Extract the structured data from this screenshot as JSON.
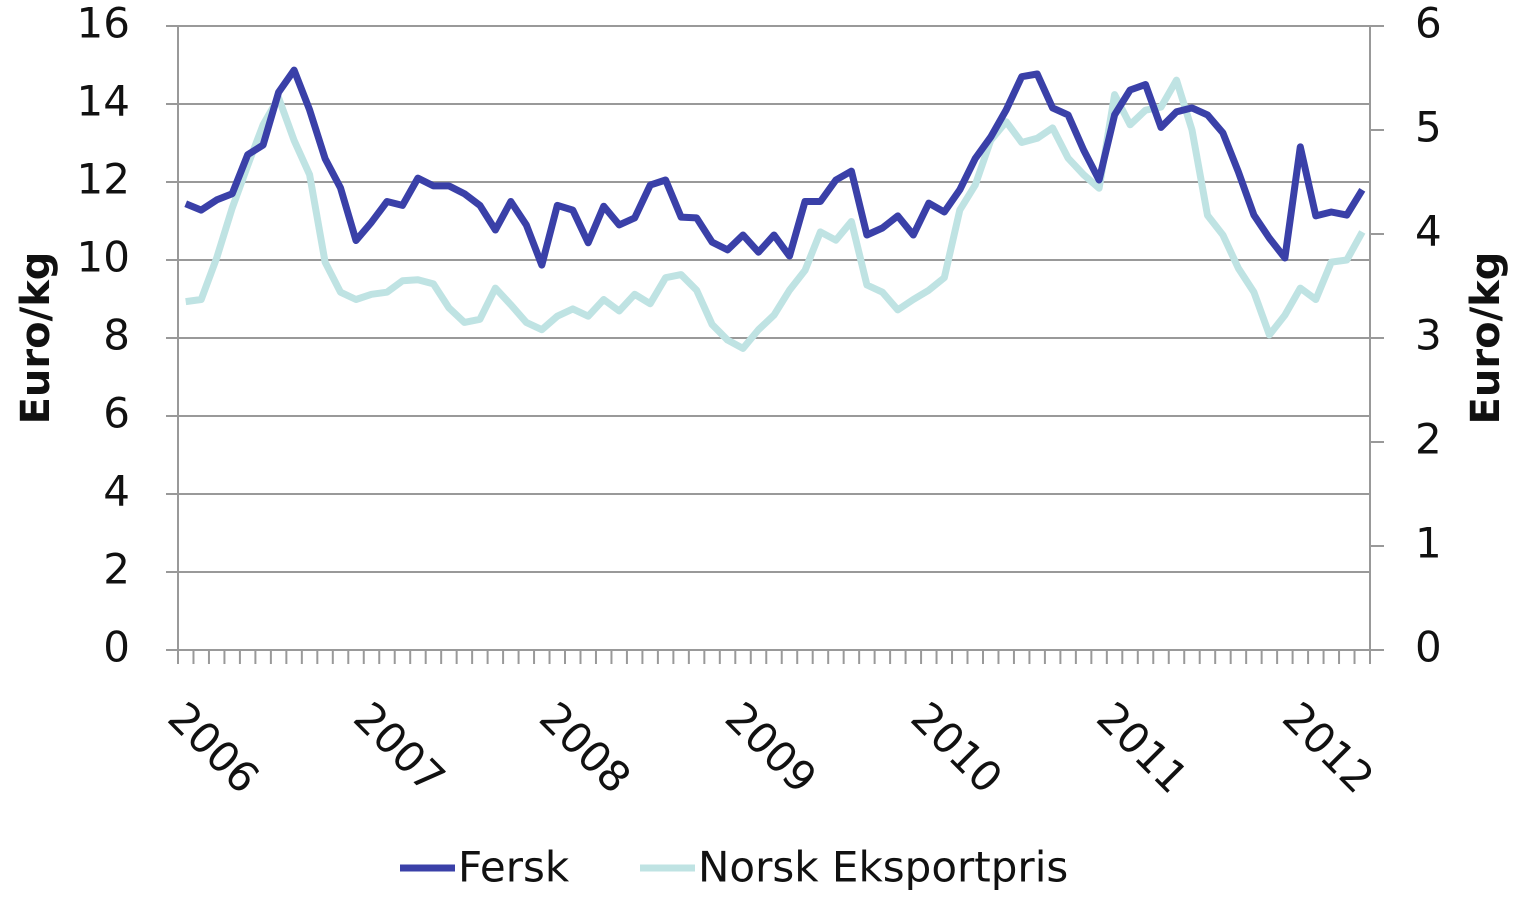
{
  "chart_data": {
    "type": "line",
    "y_label": "Euro/kg",
    "y2_label": "Euro/kg",
    "categories": [
      "2006",
      null,
      null,
      null,
      null,
      null,
      null,
      null,
      null,
      null,
      null,
      null,
      "2007",
      null,
      null,
      null,
      null,
      null,
      null,
      null,
      null,
      null,
      null,
      null,
      "2008",
      null,
      null,
      null,
      null,
      null,
      null,
      null,
      null,
      null,
      null,
      null,
      "2009",
      null,
      null,
      null,
      null,
      null,
      null,
      null,
      null,
      null,
      null,
      null,
      "2010",
      null,
      null,
      null,
      null,
      null,
      null,
      null,
      null,
      null,
      null,
      null,
      "2011",
      null,
      null,
      null,
      null,
      null,
      null,
      null,
      null,
      null,
      null,
      null,
      "2012",
      null,
      null,
      null,
      null
    ],
    "series": [
      {
        "name": "Fersk",
        "color": "#3a40a8",
        "axis": "y",
        "values": [
          11.44,
          11.28,
          11.54,
          11.7,
          12.7,
          12.95,
          14.3,
          14.87,
          13.85,
          12.6,
          11.85,
          10.5,
          10.97,
          11.5,
          11.4,
          12.1,
          11.9,
          11.9,
          11.7,
          11.4,
          10.77,
          11.5,
          10.9,
          9.87,
          11.4,
          11.28,
          10.44,
          11.38,
          10.9,
          11.08,
          11.92,
          12.05,
          11.1,
          11.08,
          10.46,
          10.26,
          10.64,
          10.2,
          10.64,
          10.1,
          11.5,
          11.5,
          12.05,
          12.28,
          10.64,
          10.82,
          11.13,
          10.64,
          11.46,
          11.23,
          11.8,
          12.6,
          13.15,
          13.85,
          14.7,
          14.77,
          13.9,
          13.72,
          12.82,
          12.05,
          13.72,
          14.36,
          14.5,
          13.4,
          13.8,
          13.9,
          13.72,
          13.26,
          12.26,
          11.15,
          10.56,
          10.05,
          12.9,
          11.13,
          11.23,
          11.15,
          11.8
        ]
      },
      {
        "name": "Norsk Eksportpris",
        "color": "#bfe3e3",
        "axis": "y2",
        "values": [
          3.35,
          3.37,
          3.77,
          4.25,
          4.66,
          5.05,
          5.31,
          4.9,
          4.57,
          3.73,
          3.44,
          3.37,
          3.42,
          3.44,
          3.55,
          3.56,
          3.52,
          3.29,
          3.15,
          3.18,
          3.48,
          3.32,
          3.15,
          3.08,
          3.21,
          3.28,
          3.21,
          3.37,
          3.26,
          3.42,
          3.33,
          3.58,
          3.61,
          3.46,
          3.13,
          2.98,
          2.9,
          3.08,
          3.22,
          3.46,
          3.65,
          4.02,
          3.94,
          4.12,
          3.51,
          3.44,
          3.27,
          3.37,
          3.46,
          3.58,
          4.23,
          4.47,
          4.9,
          5.08,
          4.88,
          4.92,
          5.02,
          4.73,
          4.57,
          4.44,
          5.34,
          5.05,
          5.19,
          5.22,
          5.48,
          5.0,
          4.18,
          3.99,
          3.67,
          3.44,
          3.03,
          3.22,
          3.48,
          3.37,
          3.73,
          3.75,
          4.02
        ]
      }
    ],
    "ylim": [
      0,
      16
    ],
    "yticks": [
      0,
      2,
      4,
      6,
      8,
      10,
      12,
      14,
      16
    ],
    "y2lim": [
      0,
      6
    ],
    "y2ticks": [
      0,
      1,
      2,
      3,
      4,
      5,
      6
    ],
    "grid": true,
    "legend": "bottom"
  }
}
